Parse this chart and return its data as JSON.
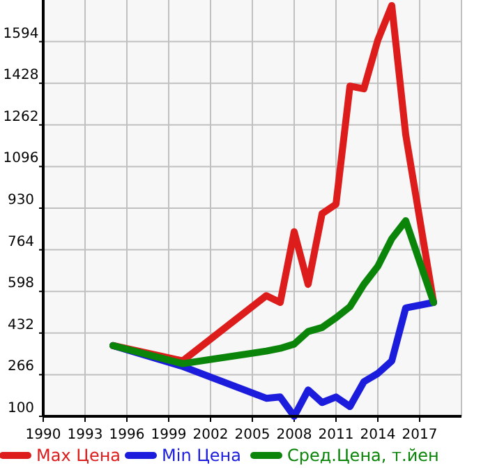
{
  "chart_data": {
    "type": "line",
    "xlim": [
      1990,
      2020
    ],
    "xticks": [
      1990,
      1993,
      1996,
      1999,
      2002,
      2005,
      2008,
      2011,
      2014,
      2017
    ],
    "ylim": [
      100,
      1760
    ],
    "yticks": [
      100,
      266,
      432,
      598,
      764,
      930,
      1096,
      1262,
      1428,
      1594
    ],
    "grid": true,
    "legend": "bottom",
    "x": [
      1995,
      2000,
      2006,
      2007,
      2008,
      2009,
      2010,
      2011,
      2012,
      2013,
      2014,
      2015,
      2016,
      2018
    ],
    "series": [
      {
        "name": "Max Цена",
        "color": "#dd1c1c",
        "values": [
          382,
          321,
          581,
          554,
          836,
          626,
          908,
          946,
          1417,
          1406,
          1600,
          1738,
          1223,
          554
        ]
      },
      {
        "name": "Min Цена",
        "color": "#1c1cdd",
        "values": [
          382,
          299,
          172,
          177,
          100,
          205,
          155,
          177,
          139,
          238,
          271,
          321,
          532,
          554
        ]
      },
      {
        "name": "Сред.Цена, т.йен",
        "color": "#0a850a",
        "values": [
          382,
          310,
          360,
          371,
          388,
          438,
          454,
          493,
          537,
          626,
          698,
          808,
          880,
          554
        ]
      }
    ]
  }
}
